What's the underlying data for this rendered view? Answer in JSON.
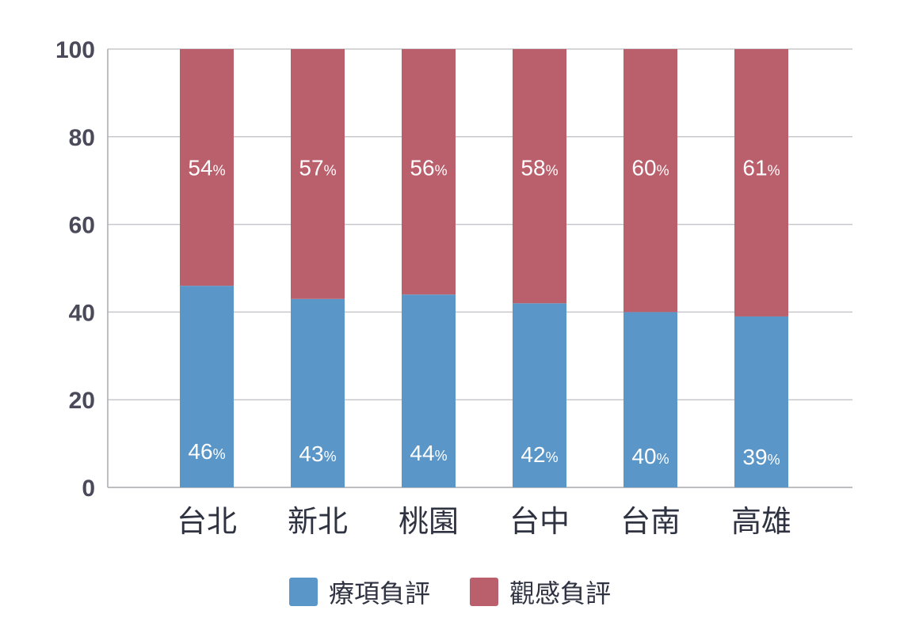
{
  "chart_data": {
    "type": "bar",
    "stacked": true,
    "categories": [
      "台北",
      "新北",
      "桃園",
      "台中",
      "台南",
      "高雄"
    ],
    "series": [
      {
        "name": "療項負評",
        "values": [
          46,
          43,
          44,
          42,
          40,
          39
        ],
        "color": "#5b96c9"
      },
      {
        "name": "觀感負評",
        "values": [
          54,
          57,
          56,
          58,
          60,
          61
        ],
        "color": "#ba5f6c"
      }
    ],
    "value_suffix": "%",
    "ylim": [
      0,
      100
    ],
    "yticks": [
      "0",
      "20",
      "40",
      "60",
      "80",
      "100"
    ],
    "grid": true,
    "legend_position": "bottom-center"
  }
}
